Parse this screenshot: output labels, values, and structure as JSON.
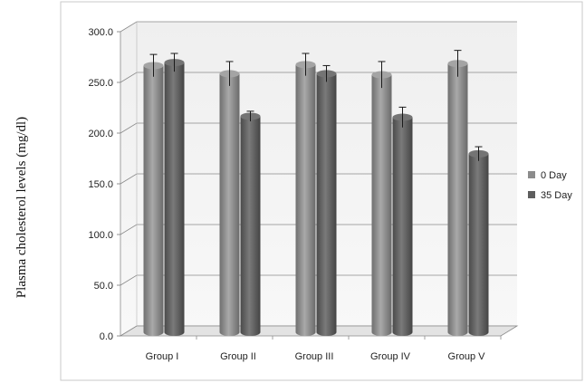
{
  "chart_data": {
    "type": "bar",
    "title": "",
    "xlabel": "",
    "ylabel": "Plasma cholesterol levels (mg/dl)",
    "categories": [
      "Group I",
      "Group II",
      "Group III",
      "Group IV",
      "Group V"
    ],
    "series": [
      {
        "name": "0 Day",
        "values": [
          263,
          255,
          264,
          254,
          265
        ],
        "errors": [
          11,
          12,
          11,
          13,
          13
        ],
        "color": "#8c8c8c"
      },
      {
        "name": "35 Day",
        "values": [
          266,
          213,
          255,
          212,
          176
        ],
        "errors": [
          9,
          5,
          8,
          10,
          7
        ],
        "color": "#5e5e5e"
      }
    ],
    "ylim": [
      0,
      300
    ],
    "yticks": [
      "0.0",
      "50.0",
      "100.0",
      "150.0",
      "200.0",
      "250.0",
      "300.0"
    ],
    "grid": true,
    "legend_position": "right"
  }
}
